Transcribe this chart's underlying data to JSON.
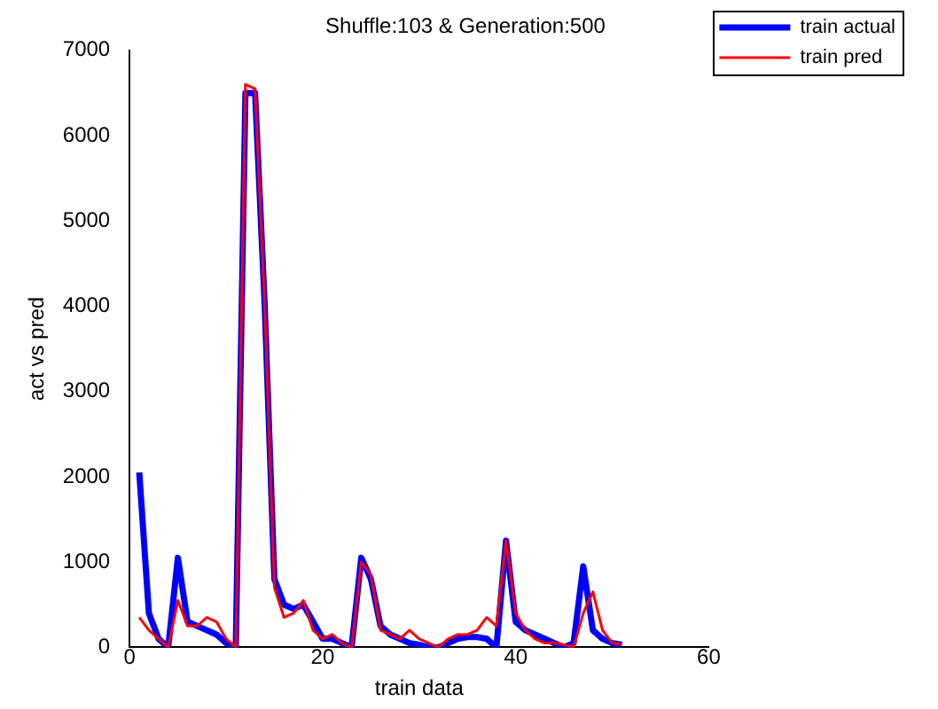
{
  "chart_data": {
    "type": "line",
    "title": "Shuffle:103 & Generation:500",
    "xlabel": "train data",
    "ylabel": "act vs pred",
    "x": [
      1,
      2,
      3,
      4,
      5,
      6,
      7,
      8,
      9,
      10,
      11,
      12,
      13,
      14,
      15,
      16,
      17,
      18,
      19,
      20,
      21,
      22,
      23,
      24,
      25,
      26,
      27,
      28,
      29,
      30,
      31,
      32,
      33,
      34,
      35,
      36,
      37,
      38,
      39,
      40,
      41,
      42,
      43,
      44,
      45,
      46,
      47,
      48,
      49,
      50,
      51
    ],
    "series": [
      {
        "name": "train actual",
        "color": "#0000ff",
        "values": [
          2050,
          400,
          100,
          0,
          1050,
          300,
          250,
          200,
          150,
          50,
          0,
          6500,
          6500,
          4000,
          800,
          500,
          450,
          500,
          300,
          100,
          100,
          50,
          0,
          1050,
          800,
          250,
          150,
          100,
          50,
          30,
          0,
          0,
          50,
          100,
          120,
          120,
          100,
          0,
          1250,
          300,
          200,
          150,
          100,
          50,
          0,
          50,
          950,
          200,
          100,
          50,
          30
        ]
      },
      {
        "name": "train pred",
        "color": "#ff0000",
        "values": [
          350,
          200,
          100,
          0,
          550,
          250,
          250,
          350,
          300,
          100,
          0,
          6600,
          6550,
          4000,
          700,
          350,
          400,
          550,
          200,
          100,
          150,
          50,
          0,
          1000,
          850,
          200,
          150,
          100,
          200,
          100,
          50,
          0,
          100,
          150,
          150,
          200,
          350,
          250,
          1250,
          400,
          200,
          100,
          50,
          50,
          30,
          0,
          400,
          650,
          200,
          50,
          30
        ]
      }
    ],
    "xlim": [
      0,
      60
    ],
    "xticks": [
      0,
      20,
      40,
      60
    ],
    "ylim": [
      0,
      7000
    ],
    "yticks": [
      0,
      1000,
      2000,
      3000,
      4000,
      5000,
      6000,
      7000
    ],
    "grid": false,
    "legend": "top right"
  }
}
